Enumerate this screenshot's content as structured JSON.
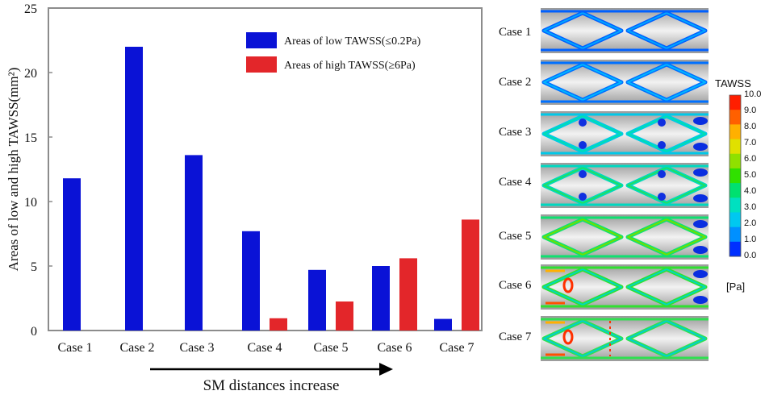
{
  "chart_data": {
    "type": "bar",
    "title": "",
    "xlabel": "",
    "ylabel": "Areas of low and high TAWSS(mm²)",
    "ylim": [
      0,
      25
    ],
    "yticks": [
      "0",
      "5",
      "10",
      "15",
      "20",
      "25"
    ],
    "grid": false,
    "legend_position": "top-right",
    "categories": [
      "Case 1",
      "Case 2",
      "Case 3",
      "Case 4",
      "Case 5",
      "Case 6",
      "Case 7"
    ],
    "series": [
      {
        "name": "Areas of low TAWSS(≤0.2Pa)",
        "color": "#0a12d6",
        "values": [
          11.8,
          22.0,
          13.6,
          7.7,
          4.7,
          5.0,
          0.9
        ]
      },
      {
        "name": "Areas of high TAWSS(≥6Pa)",
        "color": "#e3262a",
        "values": [
          0,
          0,
          0,
          0.95,
          2.25,
          5.6,
          8.6
        ]
      }
    ],
    "annotation": "SM distances increase"
  },
  "panels": {
    "case_labels": [
      "Case 1",
      "Case 2",
      "Case 3",
      "Case 4",
      "Case 5",
      "Case 6",
      "Case 7"
    ],
    "colorbar": {
      "title": "TAWSS",
      "unit": "[Pa]",
      "ticks": [
        "10.0",
        "9.0",
        "8.0",
        "7.0",
        "6.0",
        "5.0",
        "4.0",
        "3.0",
        "2.0",
        "1.0",
        "0.0"
      ],
      "colors": [
        "#0030ff",
        "#0090ff",
        "#00c8f0",
        "#00e0c0",
        "#00e070",
        "#30e000",
        "#90e000",
        "#e0e000",
        "#ffb000",
        "#ff6000",
        "#ff1e00"
      ]
    }
  }
}
